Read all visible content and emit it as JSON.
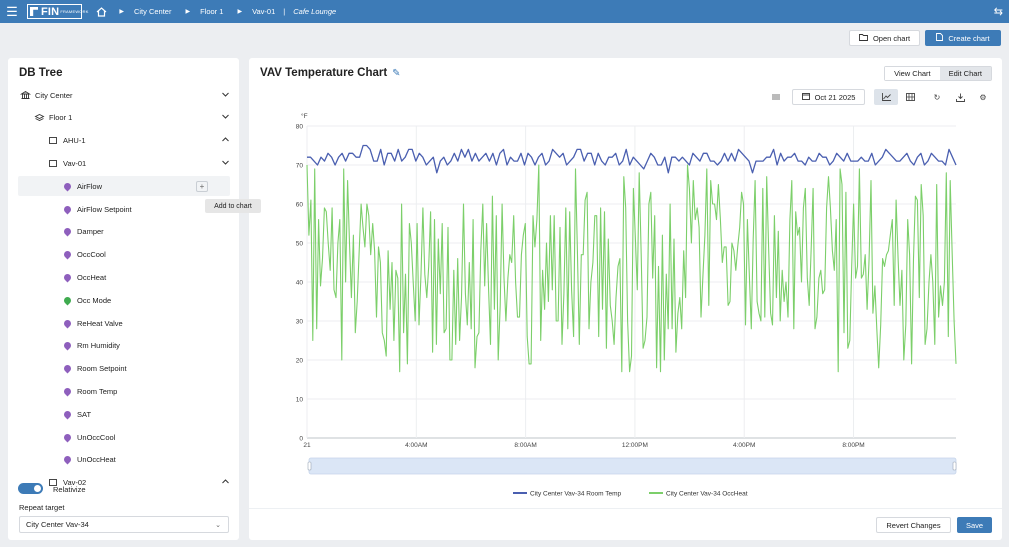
{
  "topbar": {
    "logo_text": "FIN",
    "logo_sub": "FRAMEWORK",
    "breadcrumb": [
      "City Center",
      "Floor 1",
      "Vav-01"
    ],
    "location": "Cafe Lounge"
  },
  "actions": {
    "open_chart": "Open chart",
    "create_chart": "Create chart"
  },
  "db_tree": {
    "title": "DB Tree",
    "items": [
      {
        "label": "City Center",
        "icon": "building-icon",
        "level": 0,
        "chevron": "down"
      },
      {
        "label": "Floor 1",
        "icon": "layers-icon",
        "level": 1,
        "chevron": "down"
      },
      {
        "label": "AHU-1",
        "icon": "box-icon",
        "level": 2,
        "chevron": "up"
      },
      {
        "label": "Vav-01",
        "icon": "box-icon",
        "level": 2,
        "chevron": "down"
      },
      {
        "label": "AirFlow",
        "icon": "point-icon",
        "level": 3,
        "color": "#8e5fbd"
      },
      {
        "label": "AirFlow Setpoint",
        "icon": "point-icon",
        "level": 3,
        "color": "#8e5fbd"
      },
      {
        "label": "Damper",
        "icon": "point-icon",
        "level": 3,
        "color": "#8e5fbd"
      },
      {
        "label": "OccCool",
        "icon": "point-icon",
        "level": 3,
        "color": "#8e5fbd"
      },
      {
        "label": "OccHeat",
        "icon": "point-icon",
        "level": 3,
        "color": "#8e5fbd"
      },
      {
        "label": "Occ Mode",
        "icon": "point-icon",
        "level": 3,
        "color": "#3fab4f"
      },
      {
        "label": "ReHeat Valve",
        "icon": "point-icon",
        "level": 3,
        "color": "#8e5fbd"
      },
      {
        "label": "Rm Humidity",
        "icon": "point-icon",
        "level": 3,
        "color": "#8e5fbd"
      },
      {
        "label": "Room Setpoint",
        "icon": "point-icon",
        "level": 3,
        "color": "#8e5fbd"
      },
      {
        "label": "Room Temp",
        "icon": "point-icon",
        "level": 3,
        "color": "#8e5fbd"
      },
      {
        "label": "SAT",
        "icon": "point-icon",
        "level": 3,
        "color": "#8e5fbd"
      },
      {
        "label": "UnOccCool",
        "icon": "point-icon",
        "level": 3,
        "color": "#8e5fbd"
      },
      {
        "label": "UnOccHeat",
        "icon": "point-icon",
        "level": 3,
        "color": "#8e5fbd"
      },
      {
        "label": "Vav-02",
        "icon": "box-icon",
        "level": 2,
        "chevron": "up"
      }
    ],
    "add_tooltip": "Add to chart",
    "relativize_label": "Relativize",
    "relativize_on": true,
    "repeat_target_label": "Repeat target",
    "repeat_target_value": "City Center Vav-34"
  },
  "chart_panel": {
    "title": "VAV Temperature Chart",
    "view_chart": "View Chart",
    "edit_chart": "Edit Chart",
    "date": "Oct 21 2025",
    "revert": "Revert Changes",
    "save": "Save"
  },
  "chart_data": {
    "type": "line",
    "unit_label": "°F",
    "ylim": [
      0,
      80
    ],
    "yticks": [
      0,
      10,
      20,
      30,
      40,
      50,
      60,
      70,
      80
    ],
    "x_tick_labels": [
      "21",
      "4:00AM",
      "8:00AM",
      "12:00PM",
      "4:00PM",
      "8:00PM"
    ],
    "x_tick_hours": [
      0,
      4,
      8,
      12,
      16,
      20
    ],
    "x_range_hours": [
      0,
      23.75
    ],
    "grid": true,
    "legend_position": "bottom",
    "series": [
      {
        "name": "City Center Vav-34 Room Temp",
        "color": "#4a5fb0",
        "values": [
          72,
          72,
          71,
          70,
          72,
          71,
          73,
          72,
          70,
          72,
          73,
          71,
          73,
          73,
          72,
          72,
          75,
          75,
          74,
          71,
          71,
          74,
          70,
          73,
          73,
          71,
          74,
          71,
          72,
          74,
          74,
          71,
          73,
          72,
          70,
          71,
          72,
          68,
          71,
          72,
          70,
          71,
          73,
          71,
          74,
          72,
          74,
          71,
          73,
          71,
          72,
          73,
          71,
          73,
          70,
          73,
          74,
          70,
          72,
          71,
          71,
          73,
          70,
          73,
          72,
          70,
          72,
          73,
          70,
          71,
          74,
          73,
          72,
          73,
          70,
          71,
          72,
          74,
          74,
          71,
          73,
          73,
          70,
          73,
          71,
          70,
          72,
          72,
          73,
          70,
          71,
          74,
          70,
          72,
          71,
          70,
          69,
          71,
          73,
          72,
          70,
          70,
          72,
          68,
          72,
          72,
          71,
          72,
          71,
          70,
          73,
          72,
          71,
          73,
          73,
          71,
          71,
          70,
          71,
          73,
          71,
          73,
          71,
          74,
          73,
          72,
          71,
          68,
          71,
          71,
          71,
          72,
          72,
          74,
          70,
          73,
          71,
          72,
          72,
          73,
          71,
          71,
          70,
          72,
          71,
          71,
          73,
          72,
          72,
          70,
          71,
          73,
          72,
          71,
          73,
          71,
          71,
          71,
          72,
          71,
          71,
          73,
          70,
          71,
          72,
          74,
          73,
          72,
          71,
          71,
          72,
          73,
          71,
          70,
          72,
          73,
          70,
          71,
          73,
          72,
          71,
          71,
          70,
          74,
          72,
          70
        ]
      },
      {
        "name": "City Center Vav-34 OccHeat",
        "color": "#7ccf6a",
        "values": [
          70,
          52,
          61,
          25,
          69,
          28,
          56,
          39,
          46,
          59,
          58,
          50,
          43,
          59,
          38,
          36,
          50,
          56,
          20,
          69,
          40,
          66,
          50,
          36,
          52,
          27,
          35,
          48,
          60,
          54,
          49,
          60,
          57,
          47,
          55,
          48,
          31,
          49,
          45,
          27,
          25,
          21,
          48,
          33,
          45,
          25,
          43,
          41,
          17,
          60,
          27,
          42,
          19,
          55,
          50,
          40,
          30,
          55,
          29,
          42,
          59,
          42,
          36,
          44,
          58,
          22,
          56,
          24,
          51,
          37,
          55,
          27,
          28,
          54,
          20,
          20,
          43,
          24,
          46,
          25,
          36,
          60,
          37,
          29,
          45,
          28,
          56,
          18,
          26,
          27,
          48,
          60,
          39,
          55,
          38,
          24,
          62,
          33,
          57,
          20,
          34,
          60,
          41,
          30,
          41,
          47,
          45,
          57,
          40,
          31,
          31,
          47,
          52,
          55,
          26,
          19,
          19,
          57,
          49,
          56,
          70,
          25,
          43,
          33,
          50,
          35,
          57,
          38,
          57,
          30,
          30,
          54,
          24,
          37,
          59,
          28,
          58,
          38,
          26,
          69,
          48,
          24,
          47,
          47,
          61,
          63,
          28,
          40,
          45,
          57,
          57,
          26,
          59,
          33,
          58,
          23,
          51,
          34,
          30,
          24,
          36,
          44,
          46,
          17,
          67,
          59,
          30,
          17,
          21,
          64,
          51,
          38,
          68,
          47,
          23,
          25,
          31,
          60,
          63,
          41,
          57,
          18,
          44,
          17,
          52,
          20,
          42,
          28,
          60,
          28,
          51,
          22,
          32,
          36,
          28,
          48,
          36,
          70,
          64,
          50,
          66,
          56,
          59,
          54,
          31,
          42,
          52,
          69,
          34,
          66,
          60,
          60,
          56,
          65,
          56,
          45,
          49,
          49,
          34,
          35,
          50,
          48,
          43,
          49,
          54,
          63,
          60,
          29,
          56,
          42,
          28,
          51,
          66,
          35,
          32,
          30,
          64,
          31,
          67,
          49,
          32,
          29,
          57,
          36,
          53,
          30,
          43,
          35,
          40,
          31,
          56,
          66,
          28,
          58,
          52,
          54,
          40,
          59,
          64,
          41,
          34,
          48,
          64,
          28,
          31,
          41,
          43,
          37,
          38,
          59,
          67,
          59,
          48,
          43,
          56,
          17,
          69,
          65,
          27,
          63,
          23,
          25,
          44,
          60,
          41,
          44,
          69,
          41,
          42,
          47,
          33,
          46,
          66,
          32,
          39,
          28,
          18,
          29,
          46,
          44,
          47,
          48,
          52,
          56,
          34,
          61,
          46,
          34,
          43,
          20,
          29,
          56,
          47,
          19,
          46,
          62,
          61,
          36,
          65,
          57,
          24,
          28,
          40,
          47,
          40,
          24,
          65,
          31,
          39,
          34,
          40,
          68,
          26,
          66,
          48,
          30,
          19
        ]
      }
    ]
  }
}
